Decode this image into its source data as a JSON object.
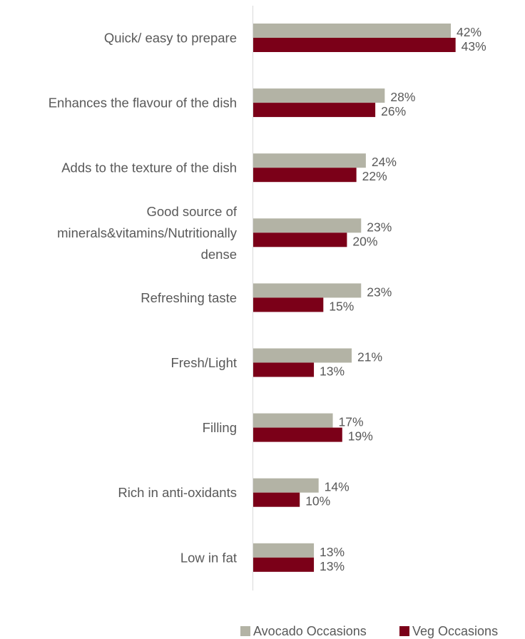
{
  "chart_data": {
    "type": "bar",
    "orientation": "horizontal",
    "categories": [
      [
        "Quick/ easy to prepare"
      ],
      [
        "Enhances the flavour of the dish"
      ],
      [
        "Adds to the texture of the dish"
      ],
      [
        "Good source of",
        "minerals&vitamins/Nutritionally",
        "dense"
      ],
      [
        "Refreshing taste"
      ],
      [
        "Fresh/Light"
      ],
      [
        "Filling"
      ],
      [
        "Rich in anti-oxidants"
      ],
      [
        "Low in fat"
      ]
    ],
    "series": [
      {
        "name": "Avocado Occasions",
        "color": "#b3b3a5",
        "values": [
          42,
          28,
          24,
          23,
          23,
          21,
          17,
          14,
          13
        ]
      },
      {
        "name": "Veg Occasions",
        "color": "#7b0018",
        "values": [
          43,
          26,
          22,
          20,
          15,
          13,
          19,
          10,
          13
        ]
      }
    ],
    "value_suffix": "%",
    "xlim": [
      0,
      60
    ],
    "axis_color": "#d9d9d9",
    "grid": false,
    "legend_position": "bottom-right"
  }
}
